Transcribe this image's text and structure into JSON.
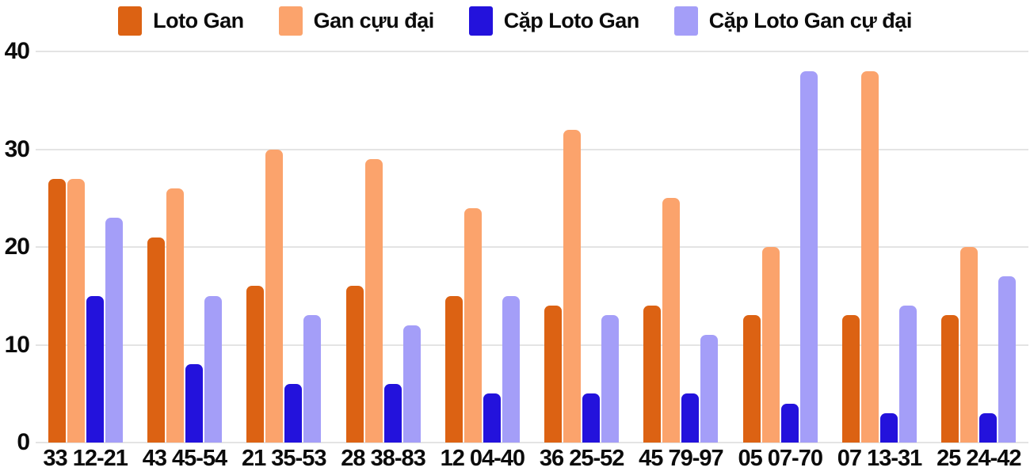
{
  "chart_data": {
    "type": "bar",
    "title": "",
    "xlabel": "",
    "ylabel": "",
    "categories": [
      "33 12-21",
      "43 45-54",
      "21 35-53",
      "28 38-83",
      "12 04-40",
      "36 25-52",
      "45 79-97",
      "05 07-70",
      "07 13-31",
      "25 24-42"
    ],
    "series": [
      {
        "name": "Loto Gan",
        "color": "#dc6213",
        "values": [
          27,
          21,
          16,
          16,
          15,
          14,
          14,
          13,
          13,
          13
        ]
      },
      {
        "name": "Gan cựu đại",
        "color": "#fba36c",
        "values": [
          27,
          26,
          30,
          29,
          24,
          32,
          25,
          20,
          38,
          20
        ]
      },
      {
        "name": "Cặp Loto Gan",
        "color": "#2312dc",
        "values": [
          15,
          8,
          6,
          6,
          5,
          5,
          5,
          4,
          3,
          3
        ]
      },
      {
        "name": "Cặp Loto Gan cự đại",
        "color": "#a49ef8",
        "values": [
          23,
          15,
          13,
          12,
          15,
          13,
          11,
          38,
          14,
          17
        ]
      }
    ],
    "ylim": [
      0,
      40
    ],
    "yticks": [
      0,
      10,
      20,
      30,
      40
    ],
    "grid": true,
    "legend_position": "top",
    "background": "#ffffff",
    "gridline_color": "#e4e4e4",
    "text_color": "#0b0b0b"
  }
}
